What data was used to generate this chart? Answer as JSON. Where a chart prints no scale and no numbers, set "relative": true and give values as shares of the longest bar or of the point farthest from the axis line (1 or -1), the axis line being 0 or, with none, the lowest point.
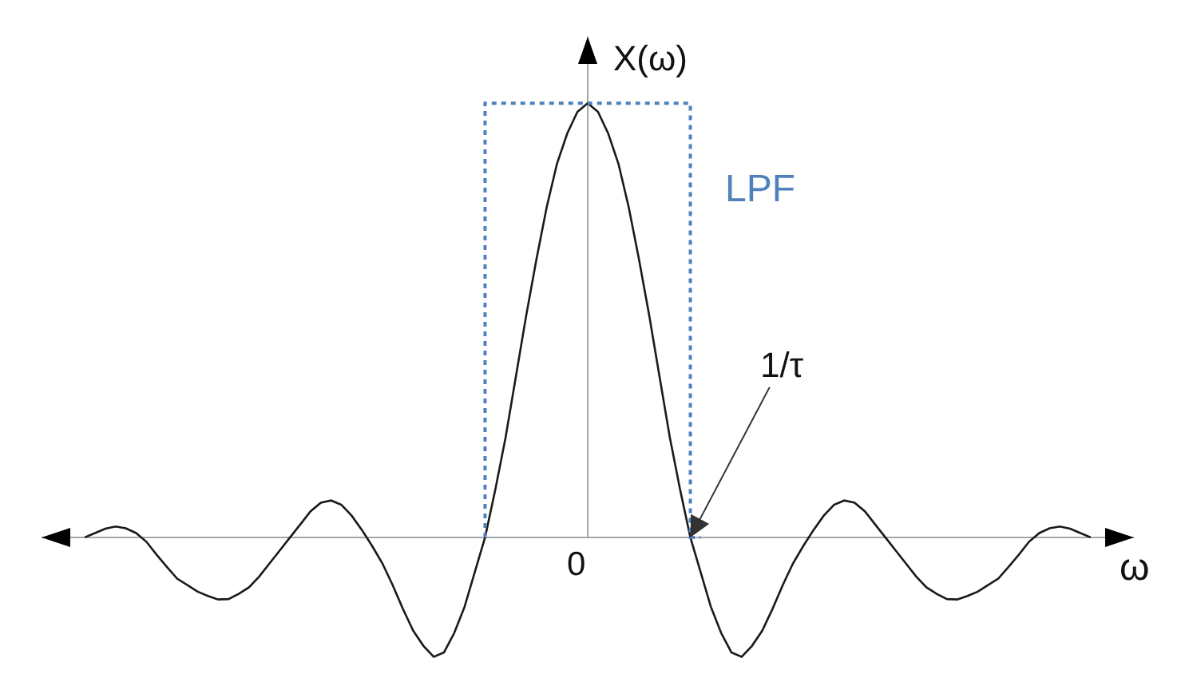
{
  "chart_data": {
    "type": "line",
    "xlabel": "ω",
    "ylabel": "X(ω)",
    "annotations": [
      "0",
      "1/τ"
    ],
    "relative": true,
    "marker": "none",
    "categories": [
      null,
      null,
      null,
      null,
      null,
      null,
      null,
      null,
      null,
      null,
      null,
      null,
      null,
      null,
      null,
      null,
      null,
      null,
      null,
      null,
      null,
      null,
      null,
      null,
      null,
      null,
      null,
      null,
      null,
      null,
      null,
      null,
      null,
      null,
      null,
      null,
      null,
      null,
      null,
      null,
      null,
      null,
      null,
      null,
      null,
      null,
      null,
      null,
      null,
      null,
      null,
      null,
      null,
      null,
      null,
      null,
      null,
      null,
      null,
      null,
      null,
      null,
      null,
      null,
      null,
      null,
      null,
      null,
      null,
      null,
      null,
      null,
      null,
      null,
      null,
      null,
      null,
      null,
      null,
      null,
      null,
      null,
      null,
      null,
      null,
      null,
      null,
      null,
      null,
      null,
      null,
      null,
      null,
      null,
      null,
      null,
      null,
      null,
      null
    ],
    "series": [
      {
        "color": "#1a1a1a",
        "values": [
          0,
          0.01,
          0.02,
          0.025,
          0.021,
          0.01,
          -0.01,
          -0.04,
          -0.068,
          -0.095,
          -0.11,
          -0.125,
          -0.135,
          -0.143,
          -0.142,
          -0.13,
          -0.115,
          -0.09,
          -0.06,
          -0.03,
          0,
          0.03,
          0.06,
          0.08,
          0.085,
          0.075,
          0.05,
          0.017,
          -0.02,
          -0.06,
          -0.11,
          -0.165,
          -0.215,
          -0.25,
          -0.275,
          -0.265,
          -0.22,
          -0.16,
          -0.08,
          0,
          0.11,
          0.23,
          0.37,
          0.51,
          0.64,
          0.76,
          0.86,
          0.93,
          0.98,
          1,
          0.98,
          0.93,
          0.86,
          0.76,
          0.64,
          0.51,
          0.37,
          0.23,
          0.11,
          0,
          -0.08,
          -0.16,
          -0.22,
          -0.265,
          -0.275,
          -0.25,
          -0.215,
          -0.165,
          -0.11,
          -0.06,
          -0.02,
          0.017,
          0.05,
          0.075,
          0.085,
          0.08,
          0.06,
          0.03,
          0,
          -0.03,
          -0.06,
          -0.09,
          -0.115,
          -0.13,
          -0.142,
          -0.143,
          -0.135,
          -0.125,
          -0.11,
          -0.095,
          -0.068,
          -0.04,
          -0.01,
          0.01,
          0.021,
          0.025,
          0.02,
          0.01,
          0
        ]
      },
      {
        "name": "LPF",
        "type": "step",
        "color": "#4f81bd",
        "line_style": "dotted",
        "values": [
          null,
          null,
          null,
          null,
          null,
          null,
          null,
          null,
          null,
          null,
          null,
          null,
          null,
          null,
          null,
          null,
          null,
          null,
          null,
          null,
          null,
          null,
          null,
          null,
          null,
          null,
          null,
          null,
          null,
          null,
          null,
          null,
          null,
          null,
          null,
          null,
          null,
          null,
          null,
          0,
          1,
          1,
          1,
          1,
          1,
          1,
          1,
          1,
          1,
          1,
          1,
          1,
          1,
          1,
          1,
          1,
          1,
          1,
          1,
          1,
          0,
          null,
          null,
          null,
          null,
          null,
          null,
          null,
          null,
          null,
          null,
          null,
          null,
          null,
          null,
          null,
          null,
          null,
          null,
          null,
          null,
          null,
          null,
          null,
          null,
          null,
          null,
          null,
          null,
          null,
          null,
          null,
          null,
          null,
          null,
          null,
          null,
          null,
          null
        ]
      }
    ]
  }
}
